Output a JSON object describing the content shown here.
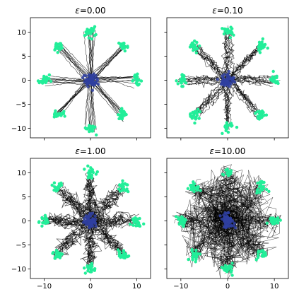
{
  "figure": {
    "background": "#ffffff",
    "start_color": "#2f3fa0",
    "end_color": "#22ee99",
    "trajectory_color": "#000000"
  },
  "chart_data": [
    {
      "type": "scatter",
      "title_prefix": "ε",
      "title_value": "=0.00",
      "epsilon": 0.0,
      "xlim": [
        -13,
        13
      ],
      "ylim": [
        -12,
        13
      ],
      "xticks": [
        -10,
        0,
        10
      ],
      "yticks": [
        -10,
        -5,
        0,
        5,
        10
      ],
      "show_x_tick_labels": false,
      "show_y_tick_labels": true,
      "targets": [
        [
          10,
          0
        ],
        [
          7.07,
          7.07
        ],
        [
          0,
          10
        ],
        [
          -7.07,
          7.07
        ],
        [
          -10,
          0
        ],
        [
          -7.07,
          -7.07
        ],
        [
          0,
          -10
        ],
        [
          7.07,
          -7.07
        ]
      ],
      "start": [
        0,
        0
      ]
    },
    {
      "type": "scatter",
      "title_prefix": "ε",
      "title_value": "=0.10",
      "epsilon": 0.1,
      "xlim": [
        -13,
        13
      ],
      "ylim": [
        -12,
        13
      ],
      "xticks": [
        -10,
        0,
        10
      ],
      "yticks": [
        -10,
        -5,
        0,
        5,
        10
      ],
      "show_x_tick_labels": false,
      "show_y_tick_labels": false,
      "targets": [
        [
          10,
          0
        ],
        [
          7.07,
          7.07
        ],
        [
          0,
          10
        ],
        [
          -7.07,
          7.07
        ],
        [
          -10,
          0
        ],
        [
          -7.07,
          -7.07
        ],
        [
          0,
          -10
        ],
        [
          7.07,
          -7.07
        ]
      ],
      "start": [
        0,
        0
      ]
    },
    {
      "type": "scatter",
      "title_prefix": "ε",
      "title_value": "=1.00",
      "epsilon": 1.0,
      "xlim": [
        -13,
        13
      ],
      "ylim": [
        -12,
        13
      ],
      "xticks": [
        -10,
        0,
        10
      ],
      "yticks": [
        -10,
        -5,
        0,
        5,
        10
      ],
      "show_x_tick_labels": true,
      "show_y_tick_labels": true,
      "targets": [
        [
          10,
          0
        ],
        [
          7.07,
          7.07
        ],
        [
          0,
          10
        ],
        [
          -7.07,
          7.07
        ],
        [
          -10,
          0
        ],
        [
          -7.07,
          -7.07
        ],
        [
          0,
          -10
        ],
        [
          7.07,
          -7.07
        ]
      ],
      "start": [
        0,
        0
      ]
    },
    {
      "type": "scatter",
      "title_prefix": "ε",
      "title_value": "=10.00",
      "epsilon": 10.0,
      "xlim": [
        -13,
        13
      ],
      "ylim": [
        -12,
        13
      ],
      "xticks": [
        -10,
        0,
        10
      ],
      "yticks": [
        -10,
        -5,
        0,
        5,
        10
      ],
      "show_x_tick_labels": true,
      "show_y_tick_labels": false,
      "targets": [
        [
          10,
          0
        ],
        [
          7.07,
          7.07
        ],
        [
          0,
          10
        ],
        [
          -7.07,
          7.07
        ],
        [
          -10,
          0
        ],
        [
          -7.07,
          -7.07
        ],
        [
          0,
          -10
        ],
        [
          7.07,
          -7.07
        ]
      ],
      "start": [
        0,
        0
      ]
    }
  ]
}
